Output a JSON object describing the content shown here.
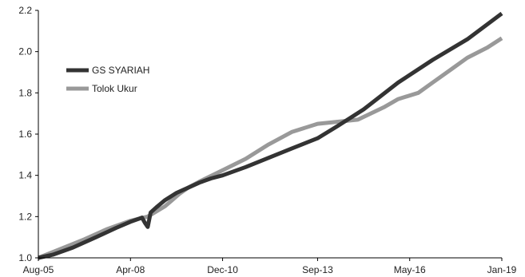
{
  "chart_data": {
    "type": "line",
    "title": "",
    "xlabel": "",
    "ylabel": "",
    "ylim": [
      1.0,
      2.2
    ],
    "yticks": [
      1.0,
      1.2,
      1.4,
      1.6,
      1.8,
      2.0,
      2.2
    ],
    "ytick_labels": [
      "1.0",
      "1.2",
      "1.4",
      "1.6",
      "1.8",
      "2.0",
      "2.2"
    ],
    "xticks": [
      "Aug-05",
      "Apr-08",
      "Dec-10",
      "Sep-13",
      "May-16",
      "Jan-19"
    ],
    "x_range": [
      "Aug-05",
      "Jan-19"
    ],
    "grid": false,
    "legend_position": "upper-left",
    "series": [
      {
        "name": "GS SYARIAH",
        "color": "#333333",
        "points": [
          [
            "Aug-05",
            1.0
          ],
          [
            "Jan-06",
            1.015
          ],
          [
            "Aug-06",
            1.05
          ],
          [
            "Apr-07",
            1.1
          ],
          [
            "Nov-07",
            1.145
          ],
          [
            "Apr-08",
            1.175
          ],
          [
            "Aug-08",
            1.195
          ],
          [
            "Sep-08",
            1.17
          ],
          [
            "Oct-08",
            1.15
          ],
          [
            "Nov-08",
            1.22
          ],
          [
            "Jan-09",
            1.245
          ],
          [
            "Apr-09",
            1.28
          ],
          [
            "Aug-09",
            1.315
          ],
          [
            "Dec-09",
            1.34
          ],
          [
            "Apr-10",
            1.365
          ],
          [
            "Aug-10",
            1.385
          ],
          [
            "Dec-10",
            1.4
          ],
          [
            "Aug-11",
            1.44
          ],
          [
            "Apr-12",
            1.485
          ],
          [
            "Dec-12",
            1.53
          ],
          [
            "Sep-13",
            1.58
          ],
          [
            "Apr-14",
            1.64
          ],
          [
            "Jan-15",
            1.72
          ],
          [
            "Jan-16",
            1.85
          ],
          [
            "Jan-17",
            1.96
          ],
          [
            "Jan-18",
            2.06
          ],
          [
            "Jan-19",
            2.185
          ]
        ]
      },
      {
        "name": "Tolok Ukur",
        "color": "#999999",
        "points": [
          [
            "Aug-05",
            1.0
          ],
          [
            "Apr-06",
            1.045
          ],
          [
            "Dec-06",
            1.09
          ],
          [
            "Aug-07",
            1.14
          ],
          [
            "Apr-08",
            1.18
          ],
          [
            "Oct-08",
            1.2
          ],
          [
            "Apr-09",
            1.25
          ],
          [
            "Sep-09",
            1.31
          ],
          [
            "Dec-09",
            1.34
          ],
          [
            "Apr-10",
            1.37
          ],
          [
            "Dec-10",
            1.425
          ],
          [
            "Aug-11",
            1.48
          ],
          [
            "Apr-12",
            1.55
          ],
          [
            "Dec-12",
            1.61
          ],
          [
            "Sep-13",
            1.65
          ],
          [
            "Apr-14",
            1.66
          ],
          [
            "Nov-14",
            1.67
          ],
          [
            "Aug-15",
            1.73
          ],
          [
            "Jan-16",
            1.77
          ],
          [
            "Aug-16",
            1.8
          ],
          [
            "Jan-17",
            1.85
          ],
          [
            "Aug-17",
            1.92
          ],
          [
            "Jan-18",
            1.97
          ],
          [
            "Aug-18",
            2.02
          ],
          [
            "Jan-19",
            2.065
          ]
        ]
      }
    ]
  }
}
